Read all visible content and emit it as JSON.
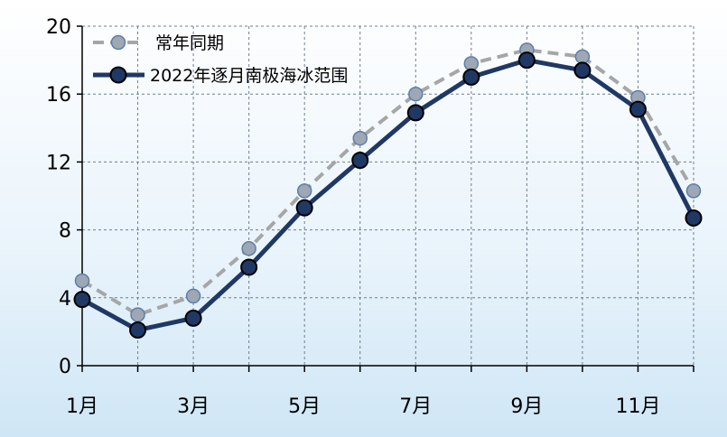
{
  "chart_data": {
    "type": "line",
    "x": [
      1,
      2,
      3,
      4,
      5,
      6,
      7,
      8,
      9,
      10,
      11,
      12
    ],
    "xtick_labels": [
      "1月",
      "3月",
      "5月",
      "7月",
      "9月",
      "11月"
    ],
    "xtick_positions": [
      1,
      3,
      5,
      7,
      9,
      11
    ],
    "ylim": [
      0,
      20
    ],
    "yticks": [
      0,
      4,
      8,
      12,
      16,
      20
    ],
    "grid": true,
    "legend_position": "top-left",
    "series": [
      {
        "name": "常年同期",
        "style": "dashed",
        "line_color": "#a6a6a6",
        "marker_color": "#9ea7b3",
        "values": [
          5.0,
          3.0,
          4.1,
          6.9,
          10.3,
          13.4,
          16.0,
          17.8,
          18.6,
          18.2,
          15.8,
          10.3
        ]
      },
      {
        "name": "2022年逐月南极海冰范围",
        "style": "solid",
        "line_color": "#1f3864",
        "marker_color": "#203864",
        "values": [
          3.9,
          2.1,
          2.8,
          5.8,
          9.3,
          12.1,
          14.9,
          17.0,
          18.0,
          17.4,
          15.1,
          8.7
        ]
      }
    ]
  }
}
